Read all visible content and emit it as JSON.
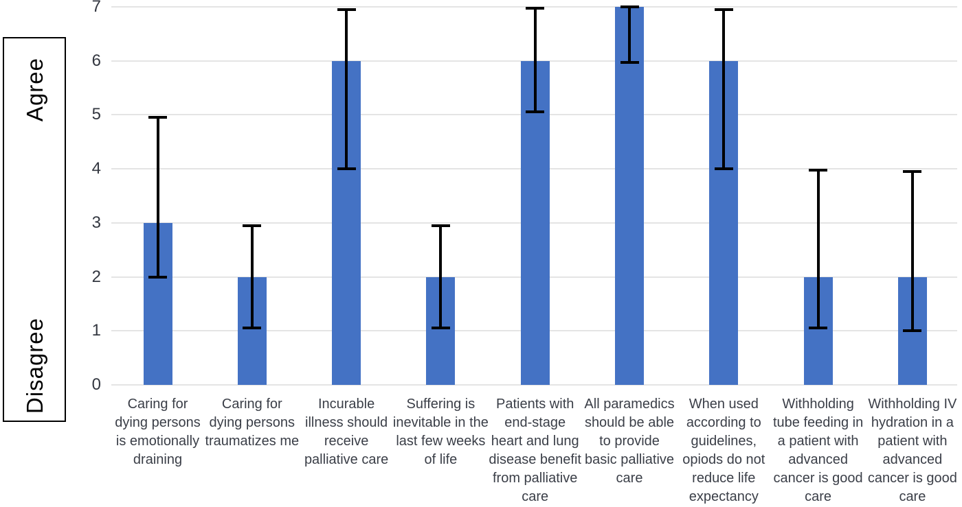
{
  "chart_data": {
    "type": "bar",
    "title": "",
    "xlabel": "",
    "ylabel": "",
    "ylim": [
      0,
      7
    ],
    "yticks": [
      "0",
      "1",
      "2",
      "3",
      "4",
      "5",
      "6",
      "7"
    ],
    "grid": true,
    "legend_position": "none",
    "bar_color": "#4472c4",
    "error_bar_color": "#000000",
    "y_axis_annotations": {
      "top": "Agree",
      "bottom": "Disagree"
    },
    "categories": [
      "Caring for dying persons is emotionally draining",
      "Caring for dying persons traumatizes me",
      "Incurable illness should receive palliative care",
      "Suffering is inevitable in the last few weeks of life",
      "Patients with end-stage heart and lung disease benefit from palliative care",
      "All paramedics should be able to provide basic palliative care",
      "When used according to guidelines, opiods do not reduce life expectancy",
      "Withholding tube feeding in a patient with advanced cancer is good care",
      "Withholding IV hydration in a patient with advanced cancer is good care"
    ],
    "values": [
      3,
      2,
      6,
      2,
      6,
      7,
      6,
      2,
      2
    ],
    "error_low": [
      2.0,
      1.05,
      4.0,
      1.05,
      5.05,
      5.97,
      4.0,
      1.05,
      1.0
    ],
    "error_high": [
      4.95,
      2.95,
      6.95,
      2.95,
      6.97,
      7.0,
      6.95,
      3.98,
      3.95
    ]
  }
}
